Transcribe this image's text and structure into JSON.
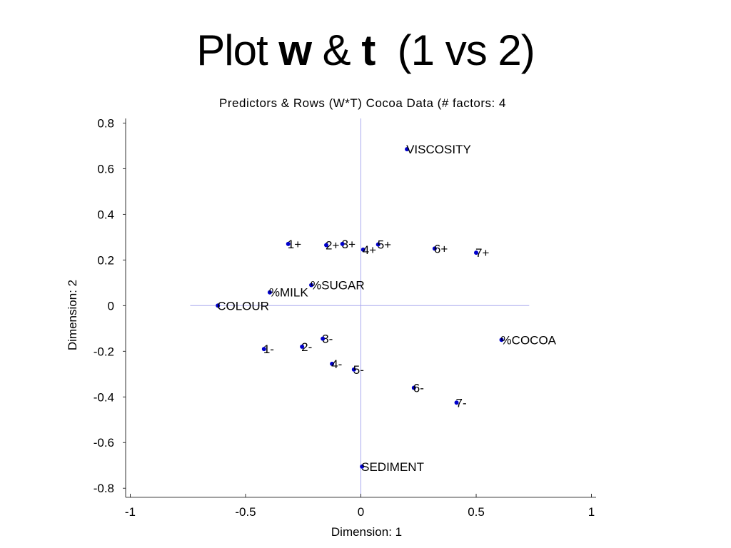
{
  "slide_title": {
    "prefix": "Plot ",
    "bold_w": "w",
    "amp": " & ",
    "bold_t": "t",
    "suffix": "  (1 vs 2)"
  },
  "chart_data": {
    "type": "scatter",
    "title": "Predictors & Rows (W*T) Cocoa Data (# factors: 4",
    "xlabel": "Dimension: 1",
    "ylabel": "Dimension: 2",
    "xlim": [
      -1.02,
      1.02
    ],
    "ylim": [
      -0.84,
      0.82
    ],
    "xticks": [
      -1,
      -0.5,
      0,
      0.5,
      1
    ],
    "yticks": [
      0.8,
      0.6,
      0.4,
      0.2,
      0,
      -0.2,
      -0.4,
      -0.6,
      -0.8
    ],
    "point_color": "#0000cc",
    "crosshair_color": "#aaaaee",
    "crosshair_x_range": [
      -0.74,
      0.73
    ],
    "crosshair_y_range": [
      -0.84,
      0.82
    ],
    "points": [
      {
        "label": "VISCOSITY",
        "x": 0.2,
        "y": 0.685
      },
      {
        "label": "1+",
        "x": -0.315,
        "y": 0.27
      },
      {
        "label": "2+",
        "x": -0.15,
        "y": 0.265
      },
      {
        "label": "3+",
        "x": -0.08,
        "y": 0.27
      },
      {
        "label": "4+",
        "x": 0.01,
        "y": 0.245
      },
      {
        "label": "5+",
        "x": 0.075,
        "y": 0.268
      },
      {
        "label": "6+",
        "x": 0.32,
        "y": 0.25
      },
      {
        "label": "7+",
        "x": 0.5,
        "y": 0.232
      },
      {
        "label": "%SUGAR",
        "x": -0.215,
        "y": 0.09
      },
      {
        "label": "%MILK",
        "x": -0.395,
        "y": 0.058
      },
      {
        "label": "COLOUR",
        "x": -0.62,
        "y": 0.0
      },
      {
        "label": "3-",
        "x": -0.165,
        "y": -0.145
      },
      {
        "label": "%COCOA",
        "x": 0.61,
        "y": -0.15
      },
      {
        "label": "1-",
        "x": -0.42,
        "y": -0.19
      },
      {
        "label": "2-",
        "x": -0.255,
        "y": -0.18
      },
      {
        "label": "4-",
        "x": -0.125,
        "y": -0.255
      },
      {
        "label": "5-",
        "x": -0.03,
        "y": -0.28
      },
      {
        "label": "6-",
        "x": 0.23,
        "y": -0.36
      },
      {
        "label": "7-",
        "x": 0.415,
        "y": -0.425
      },
      {
        "label": "SEDIMENT",
        "x": 0.005,
        "y": -0.705
      }
    ]
  }
}
